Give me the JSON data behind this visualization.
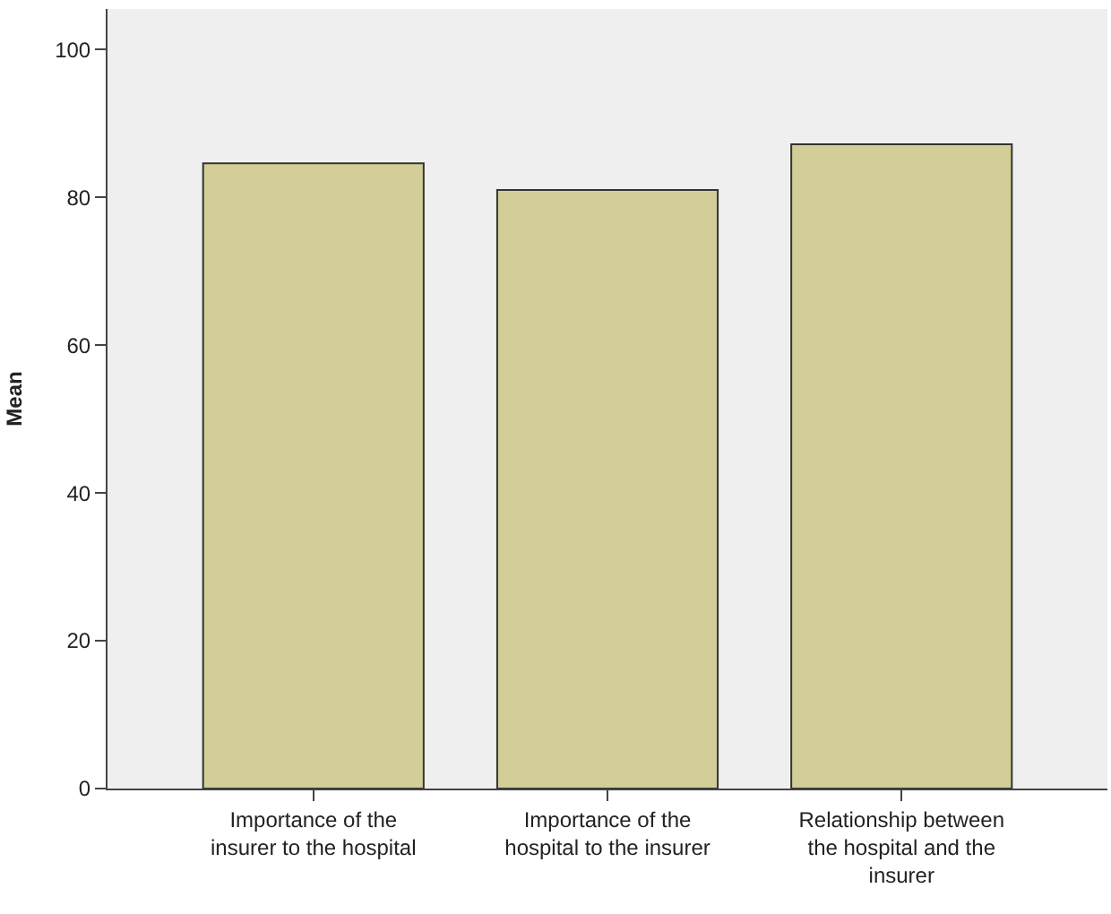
{
  "chart_data": {
    "type": "bar",
    "ylabel": "Mean",
    "categories": [
      "Importance of the insurer to the hospital",
      "Importance of the hospital to the insurer",
      "Relationship between the hospital and the insurer"
    ],
    "values": [
      84.6,
      81.0,
      87.2
    ],
    "color": "#d3ce97",
    "ylim": [
      0,
      105.5
    ],
    "yticks": [
      0,
      20,
      40,
      60,
      80,
      100
    ],
    "grid": false
  }
}
